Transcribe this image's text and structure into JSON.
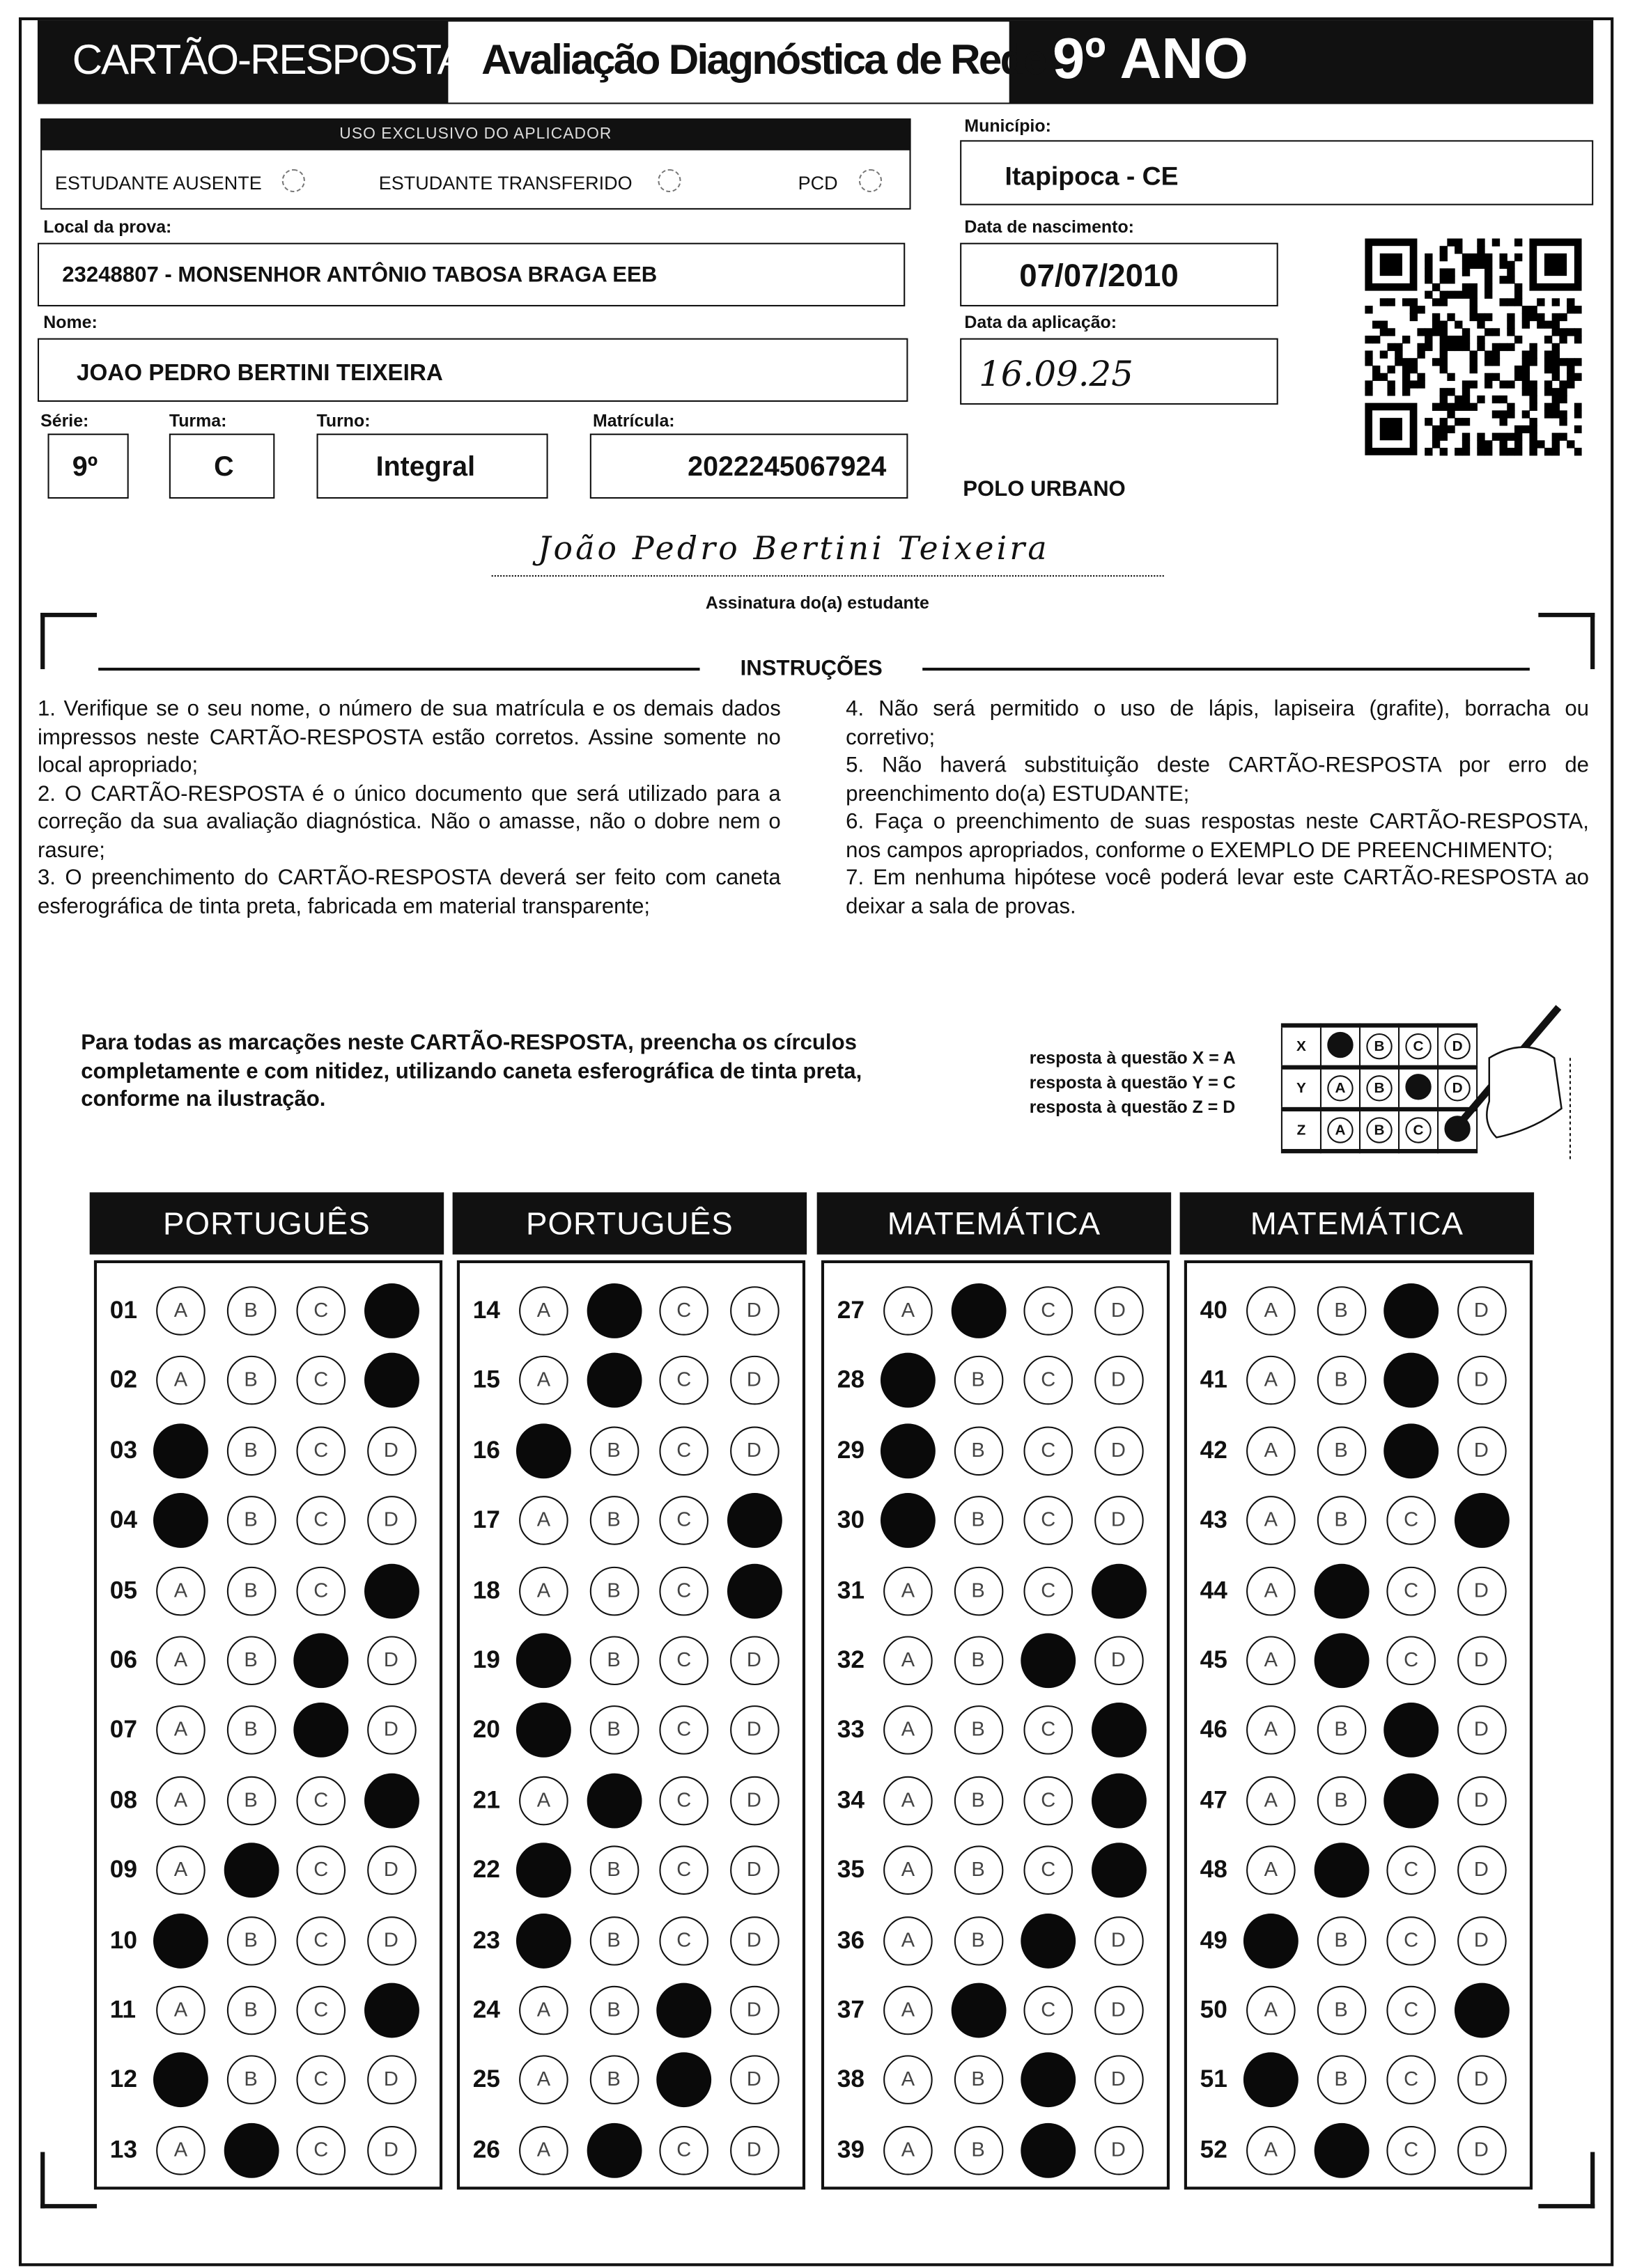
{
  "header": {
    "title": "CARTÃO-RESPOSTA",
    "subtitle": "Avaliação Diagnóstica de Rede",
    "grade": "9º ANO"
  },
  "aplicador": {
    "title": "USO EXCLUSIVO DO APLICADOR",
    "options": [
      "ESTUDANTE AUSENTE",
      "ESTUDANTE TRANSFERIDO",
      "PCD"
    ]
  },
  "fields": {
    "municipio": {
      "label": "Município:",
      "value": "Itapipoca - CE"
    },
    "local": {
      "label": "Local da prova:",
      "value": "23248807 - MONSENHOR ANTÔNIO TABOSA BRAGA EEB"
    },
    "nascimento": {
      "label": "Data de nascimento:",
      "value": "07/07/2010"
    },
    "nome": {
      "label": "Nome:",
      "value": "JOAO PEDRO BERTINI TEIXEIRA"
    },
    "aplicacao": {
      "label": "Data da aplicação:",
      "value": "16.09.25"
    },
    "serie": {
      "label": "Série:",
      "value": "9º"
    },
    "turma": {
      "label": "Turma:",
      "value": "C"
    },
    "turno": {
      "label": "Turno:",
      "value": "Integral"
    },
    "matricula": {
      "label": "Matrícula:",
      "value": "2022245067924"
    },
    "polo": "POLO URBANO"
  },
  "signature": {
    "handwritten": "João Pedro Bertini Teixeira",
    "label": "Assinatura do(a) estudante"
  },
  "instructions": {
    "title": "INSTRUÇÕES",
    "left": [
      "1. Verifique se o seu nome, o número de sua matrícula e os demais dados impressos neste CARTÃO-RESPOSTA estão corretos. Assine somente no local apropriado;",
      "2. O CARTÃO-RESPOSTA é o único documento que será utilizado para a correção da sua avaliação diagnóstica. Não o amasse, não o dobre nem o rasure;",
      "3. O preenchimento do CARTÃO-RESPOSTA deverá ser feito com caneta esferográfica de tinta preta, fabricada em material transparente;"
    ],
    "right": [
      "4. Não será permitido o uso de lápis, lapiseira (grafite), borracha ou corretivo;",
      "5. Não haverá substituição deste CARTÃO-RESPOSTA por erro de preenchimento do(a) ESTUDANTE;",
      "6. Faça o preenchimento de suas respostas neste CARTÃO-RESPOSTA, nos campos apropriados, conforme o EXEMPLO DE PREENCHIMENTO;",
      "7. Em nenhuma hipótese você poderá levar este CARTÃO-RESPOSTA ao deixar a sala de provas."
    ]
  },
  "fill_note": "Para todas as marcações neste CARTÃO-RESPOSTA, preencha os círculos completamente e com nitidez, utilizando caneta esferográfica de tinta preta, conforme na ilustração.",
  "example": {
    "lines": [
      "resposta à questão X = A",
      "resposta à questão Y = C",
      "resposta à questão Z = D"
    ],
    "rows": [
      {
        "q": "X",
        "marked": "A"
      },
      {
        "q": "Y",
        "marked": "C"
      },
      {
        "q": "Z",
        "marked": "D"
      }
    ]
  },
  "options": [
    "A",
    "B",
    "C",
    "D"
  ],
  "sections": [
    {
      "title": "PORTUGUÊS",
      "questions": [
        [
          "01",
          "D"
        ],
        [
          "02",
          "D"
        ],
        [
          "03",
          "A"
        ],
        [
          "04",
          "A"
        ],
        [
          "05",
          "D"
        ],
        [
          "06",
          "C"
        ],
        [
          "07",
          "C"
        ],
        [
          "08",
          "D"
        ],
        [
          "09",
          "B"
        ],
        [
          "10",
          "A"
        ],
        [
          "11",
          "D"
        ],
        [
          "12",
          "A"
        ],
        [
          "13",
          "B"
        ]
      ]
    },
    {
      "title": "PORTUGUÊS",
      "questions": [
        [
          "14",
          "B"
        ],
        [
          "15",
          "B"
        ],
        [
          "16",
          "A"
        ],
        [
          "17",
          "D"
        ],
        [
          "18",
          "D"
        ],
        [
          "19",
          "A"
        ],
        [
          "20",
          "A"
        ],
        [
          "21",
          "B"
        ],
        [
          "22",
          "A"
        ],
        [
          "23",
          "A"
        ],
        [
          "24",
          "C"
        ],
        [
          "25",
          "C"
        ],
        [
          "26",
          "B"
        ]
      ]
    },
    {
      "title": "MATEMÁTICA",
      "questions": [
        [
          "27",
          "B"
        ],
        [
          "28",
          "A"
        ],
        [
          "29",
          "A"
        ],
        [
          "30",
          "A"
        ],
        [
          "31",
          "D"
        ],
        [
          "32",
          "C"
        ],
        [
          "33",
          "D"
        ],
        [
          "34",
          "D"
        ],
        [
          "35",
          "D"
        ],
        [
          "36",
          "C"
        ],
        [
          "37",
          "B"
        ],
        [
          "38",
          "C"
        ],
        [
          "39",
          "C"
        ]
      ]
    },
    {
      "title": "MATEMÁTICA",
      "questions": [
        [
          "40",
          "C"
        ],
        [
          "41",
          "C"
        ],
        [
          "42",
          "C"
        ],
        [
          "43",
          "D"
        ],
        [
          "44",
          "B"
        ],
        [
          "45",
          "B"
        ],
        [
          "46",
          "C"
        ],
        [
          "47",
          "C"
        ],
        [
          "48",
          "B"
        ],
        [
          "49",
          "A"
        ],
        [
          "50",
          "D"
        ],
        [
          "51",
          "A"
        ],
        [
          "52",
          "B"
        ]
      ]
    }
  ]
}
